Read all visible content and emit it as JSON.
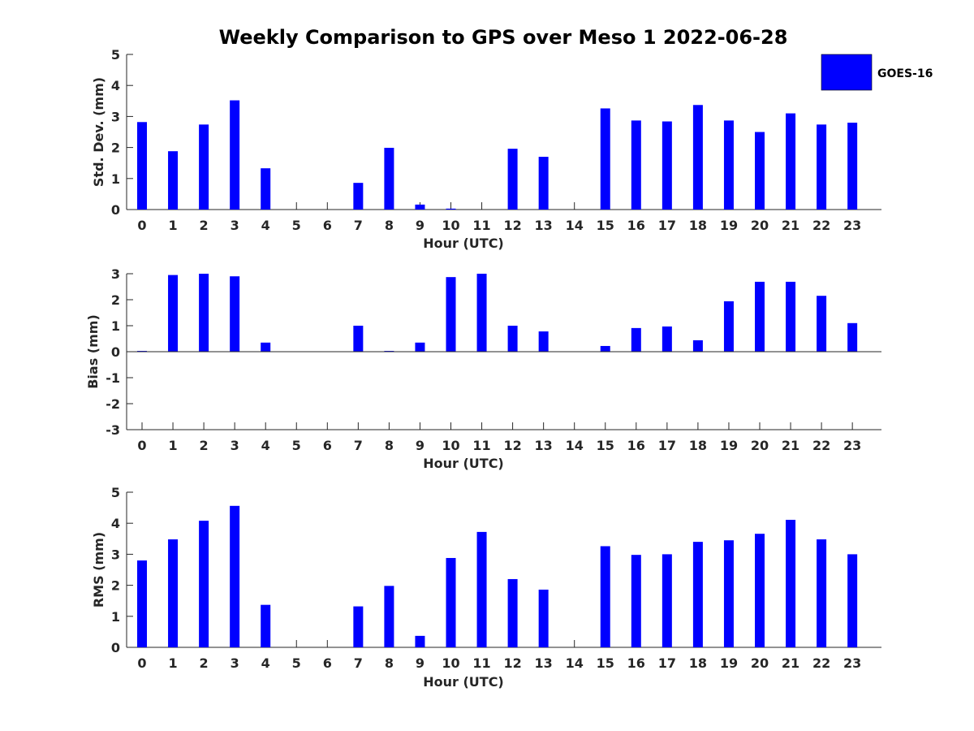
{
  "title": "Weekly Comparison to GPS over Meso 1 2022-06-28",
  "legend": {
    "label": "GOES-16",
    "color": "#0000ff"
  },
  "chart_data": [
    {
      "type": "bar",
      "categories": [
        "0",
        "1",
        "2",
        "3",
        "4",
        "5",
        "6",
        "7",
        "8",
        "9",
        "10",
        "11",
        "12",
        "13",
        "14",
        "15",
        "16",
        "17",
        "18",
        "19",
        "20",
        "21",
        "22",
        "23"
      ],
      "series": [
        {
          "name": "GOES-16",
          "values": [
            2.82,
            1.88,
            2.74,
            3.52,
            1.33,
            0,
            0,
            0.86,
            1.99,
            0.16,
            0.03,
            0,
            1.96,
            1.7,
            0,
            3.26,
            2.87,
            2.84,
            3.37,
            2.87,
            2.5,
            3.1,
            2.74,
            2.8
          ]
        }
      ],
      "xlabel": "Hour (UTC)",
      "ylabel": "Std. Dev. (mm)",
      "ylim": [
        0,
        5
      ],
      "yticks": [
        "0",
        "1",
        "2",
        "3",
        "4",
        "5"
      ],
      "grid": false,
      "legend_position": "top-right"
    },
    {
      "type": "bar",
      "categories": [
        "0",
        "1",
        "2",
        "3",
        "4",
        "5",
        "6",
        "7",
        "8",
        "9",
        "10",
        "11",
        "12",
        "13",
        "14",
        "15",
        "16",
        "17",
        "18",
        "19",
        "20",
        "21",
        "22",
        "23"
      ],
      "series": [
        {
          "name": "GOES-16",
          "values": [
            0.03,
            2.95,
            3.0,
            2.9,
            0.35,
            0,
            0,
            1.0,
            0.03,
            0.35,
            2.87,
            3.0,
            1.0,
            0.78,
            0,
            0.22,
            0.91,
            0.97,
            0.44,
            1.94,
            2.69,
            2.69,
            2.15,
            1.1
          ]
        }
      ],
      "xlabel": "Hour (UTC)",
      "ylabel": "Bias (mm)",
      "ylim": [
        -3,
        3
      ],
      "yticks": [
        "-3",
        "-2",
        "-1",
        "0",
        "1",
        "2",
        "3"
      ],
      "grid": false
    },
    {
      "type": "bar",
      "categories": [
        "0",
        "1",
        "2",
        "3",
        "4",
        "5",
        "6",
        "7",
        "8",
        "9",
        "10",
        "11",
        "12",
        "13",
        "14",
        "15",
        "16",
        "17",
        "18",
        "19",
        "20",
        "21",
        "22",
        "23"
      ],
      "series": [
        {
          "name": "GOES-16",
          "values": [
            2.8,
            3.48,
            4.08,
            4.56,
            1.37,
            0,
            0,
            1.32,
            1.98,
            0.37,
            2.88,
            3.72,
            2.2,
            1.86,
            0,
            3.26,
            2.98,
            3.0,
            3.4,
            3.45,
            3.66,
            4.11,
            3.48,
            3.0
          ]
        }
      ],
      "xlabel": "Hour (UTC)",
      "ylabel": "RMS (mm)",
      "ylim": [
        0,
        5
      ],
      "yticks": [
        "0",
        "1",
        "2",
        "3",
        "4",
        "5"
      ],
      "grid": false
    }
  ]
}
